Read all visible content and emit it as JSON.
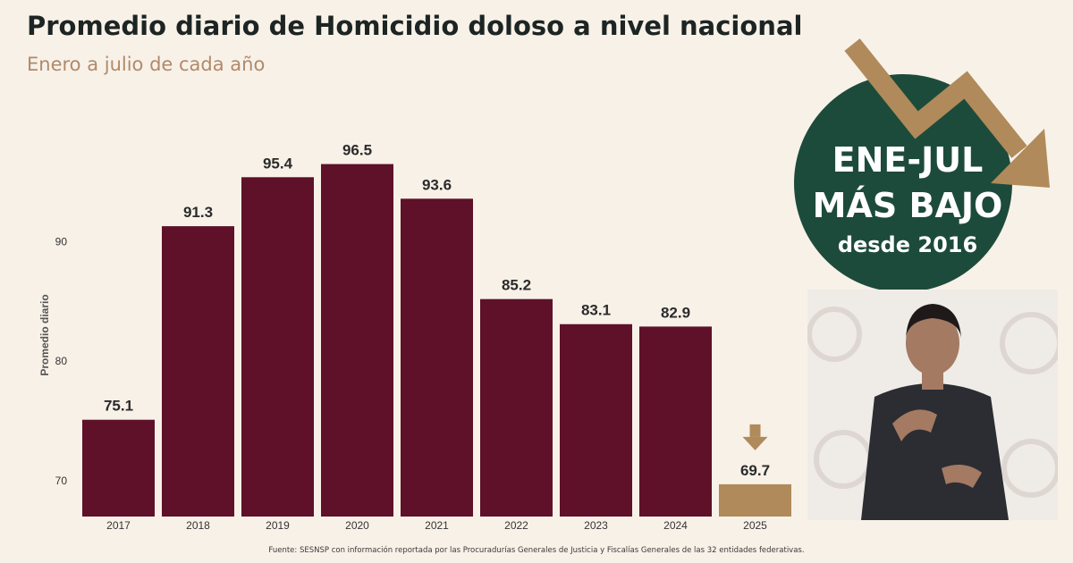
{
  "title": "Promedio diario de Homicidio doloso a nivel nacional",
  "subtitle": "Enero a julio de cada año",
  "source": "Fuente: SESNSP con información reportada por las Procuradurías Generales de Justicia y Fiscalías Generales de las 32 entidades federativas.",
  "badge": {
    "line1": "ENE-JUL",
    "line2": "MÁS BAJO",
    "line3": "desde 2016"
  },
  "colors": {
    "bar": "#5e1129",
    "highlight": "#b08a5a",
    "badge_bg": "#1d4b3b",
    "title": "#1c2523",
    "subtitle": "#b08a6a"
  },
  "chart_data": {
    "type": "bar",
    "title": "Promedio diario de Homicidio doloso a nivel nacional",
    "subtitle": "Enero a julio de cada año",
    "ylabel": "Promedio diario",
    "categories": [
      "2017",
      "2018",
      "2019",
      "2020",
      "2021",
      "2022",
      "2023",
      "2024",
      "2025"
    ],
    "values": [
      75.1,
      91.3,
      95.4,
      96.5,
      93.6,
      85.2,
      83.1,
      82.9,
      69.7
    ],
    "yticks": [
      70,
      80,
      90
    ],
    "ylim": [
      67.0,
      98.5
    ],
    "highlight_category": "2025",
    "grid": false
  }
}
